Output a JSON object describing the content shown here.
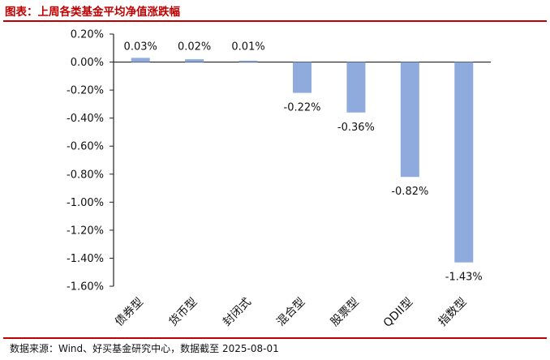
{
  "header": {
    "title": "图表：上周各类基金平均净值涨跌幅"
  },
  "footer": {
    "source": "数据来源：Wind、好买基金研究中心，数据截至 2025-08-01"
  },
  "colors": {
    "accent": "#c00000",
    "bar": "#8faadc",
    "axis": "#222222"
  },
  "chart_data": {
    "type": "bar",
    "title": "上周各类基金平均净值涨跌幅",
    "xlabel": "",
    "ylabel": "",
    "categories": [
      "债券型",
      "货币型",
      "封闭式",
      "混合型",
      "股票型",
      "QDII型",
      "指数型"
    ],
    "values": [
      0.03,
      0.02,
      0.01,
      -0.22,
      -0.36,
      -0.82,
      -1.43
    ],
    "value_labels": [
      "0.03%",
      "0.02%",
      "0.01%",
      "-0.22%",
      "-0.36%",
      "-0.82%",
      "-1.43%"
    ],
    "ylim": [
      -1.6,
      0.2
    ],
    "yticks": [
      0.2,
      0.0,
      -0.2,
      -0.4,
      -0.6,
      -0.8,
      -1.0,
      -1.2,
      -1.4,
      -1.6
    ],
    "ytick_labels": [
      "0.20%",
      "0.00%",
      "-0.20%",
      "-0.40%",
      "-0.60%",
      "-0.80%",
      "-1.00%",
      "-1.20%",
      "-1.40%",
      "-1.60%"
    ],
    "grid": false,
    "legend": "none"
  }
}
